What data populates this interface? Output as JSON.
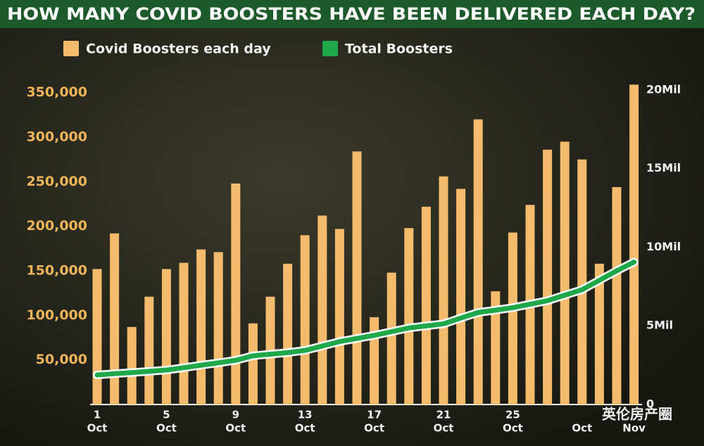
{
  "chart_data": {
    "type": "bar",
    "title": "HOW MANY COVID BOOSTERS HAVE BEEN DELIVERED EACH DAY?",
    "categories": [
      "1",
      null,
      null,
      null,
      "5",
      null,
      null,
      null,
      "9",
      null,
      null,
      null,
      "13",
      null,
      null,
      null,
      "17",
      null,
      null,
      null,
      "21",
      null,
      null,
      null,
      "25",
      null,
      null,
      null,
      null,
      null,
      null,
      null
    ],
    "category_months": [
      "Oct",
      null,
      null,
      null,
      "Oct",
      null,
      null,
      null,
      "Oct",
      null,
      null,
      null,
      "Oct",
      null,
      null,
      null,
      "Oct",
      null,
      null,
      null,
      "Oct",
      null,
      null,
      null,
      "Oct",
      null,
      null,
      null,
      "Oct",
      null,
      null,
      "Nov"
    ],
    "series": [
      {
        "name": "Covid Boosters each day",
        "color": "#f4bb6c",
        "values": [
          152000,
          192000,
          87000,
          121000,
          152000,
          159000,
          174000,
          171000,
          248000,
          91000,
          121000,
          158000,
          190000,
          212000,
          197000,
          284000,
          98000,
          148000,
          198000,
          222000,
          256000,
          242000,
          320000,
          127000,
          193000,
          224000,
          286000,
          295000,
          275000,
          158000,
          244000,
          359000
        ]
      },
      {
        "name": "Total Boosters",
        "color": "#1ea84a",
        "axis": "y2",
        "type": "line",
        "values": [
          1880000,
          1960000,
          2030000,
          2110000,
          2190000,
          2340000,
          2500000,
          2650000,
          2810000,
          3100000,
          3200000,
          3300000,
          3440000,
          3720000,
          4000000,
          4200000,
          4400000,
          4630000,
          4870000,
          5000000,
          5130000,
          5500000,
          5850000,
          6000000,
          6160000,
          6380000,
          6600000,
          6950000,
          7300000,
          7900000,
          8500000,
          9060000
        ]
      }
    ],
    "ylim": [
      0,
      360000
    ],
    "yticks": [
      {
        "value": 50000,
        "label": "50,000"
      },
      {
        "value": 100000,
        "label": "100,000"
      },
      {
        "value": 150000,
        "label": "150,000"
      },
      {
        "value": 200000,
        "label": "200,000"
      },
      {
        "value": 250000,
        "label": "250,000"
      },
      {
        "value": 300000,
        "label": "300,000"
      },
      {
        "value": 350000,
        "label": "350,000"
      }
    ],
    "y2lim": [
      0,
      20400000
    ],
    "y2ticks": [
      0,
      {
        "value": 5000000,
        "label": "5Mil"
      },
      {
        "value": 10000000,
        "label": "10Mil"
      },
      {
        "value": 15000000,
        "label": "15Mil"
      },
      {
        "value": 20000000,
        "label": "20Mil"
      }
    ],
    "grid": false,
    "watermark": "英伦房产圈"
  }
}
